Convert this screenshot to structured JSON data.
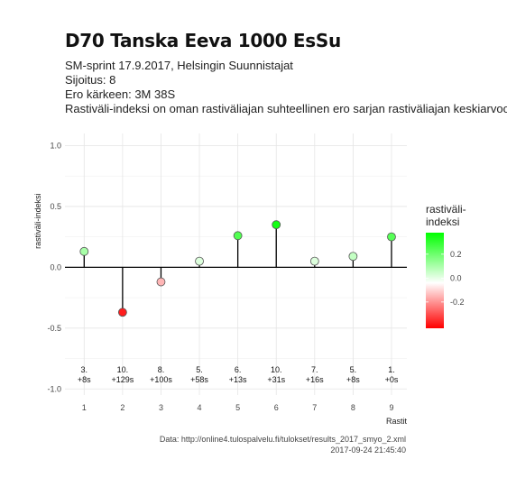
{
  "title": "D70 Tanska Eeva 1000 EsSu",
  "subtitle_lines": [
    "SM-sprint 17.9.2017, Helsingin Suunnistajat",
    "Sijoitus: 8",
    "Ero kärkeen: 3M 38S",
    "Rastiväli-indeksi on oman rastiväliajan suhteellinen ero sarjan rastiväliajan keskiarvoon"
  ],
  "caption": {
    "source": "Data: http://online4.tulospalvelu.fi/tulokset/results_2017_smyo_2.xml",
    "timestamp": "2017-09-24 21:45:40"
  },
  "colors": {
    "low": "#ff0000",
    "mid": "#ffffff",
    "high": "#00ff00",
    "stem": "#000000",
    "grid": "#e5e5e5",
    "zero_line": "#000000"
  },
  "chart_data": {
    "type": "lollipop",
    "title": "D70 Tanska Eeva 1000 EsSu",
    "xlabel": "Rastit",
    "ylabel": "rastiväli-indeksi",
    "x": [
      1,
      2,
      3,
      4,
      5,
      6,
      7,
      8,
      9
    ],
    "values": [
      0.13,
      -0.37,
      -0.12,
      0.05,
      0.26,
      0.35,
      0.05,
      0.09,
      0.25
    ],
    "point_labels": [
      [
        "3.",
        "+8s"
      ],
      [
        "10.",
        "+129s"
      ],
      [
        "8.",
        "+100s"
      ],
      [
        "5.",
        "+58s"
      ],
      [
        "6.",
        "+13s"
      ],
      [
        "10.",
        "+31s"
      ],
      [
        "7.",
        "+16s"
      ],
      [
        "5.",
        "+8s"
      ],
      [
        "1.",
        "+0s"
      ]
    ],
    "label_y": -0.9,
    "xlim": [
      0.5,
      9.4
    ],
    "ylim": [
      -1.05,
      1.1
    ],
    "y_ticks": [
      1.0,
      0.5,
      0.0,
      -0.5,
      -1.0
    ],
    "y_tick_labels": [
      "1.0",
      "0.5",
      "0.0",
      "-0.5",
      "-1.0"
    ],
    "x_tick_labels": [
      "1",
      "2",
      "3",
      "4",
      "5",
      "6",
      "7",
      "8",
      "9"
    ],
    "grid": true,
    "legend": {
      "title_lines": [
        "rastiväli-",
        "indeksi"
      ],
      "placement": "right",
      "range": [
        -0.42,
        0.38
      ],
      "ticks": [
        0.2,
        0.0,
        -0.2
      ],
      "tick_labels": [
        "0.2",
        "0.0",
        "-0.2"
      ]
    }
  }
}
